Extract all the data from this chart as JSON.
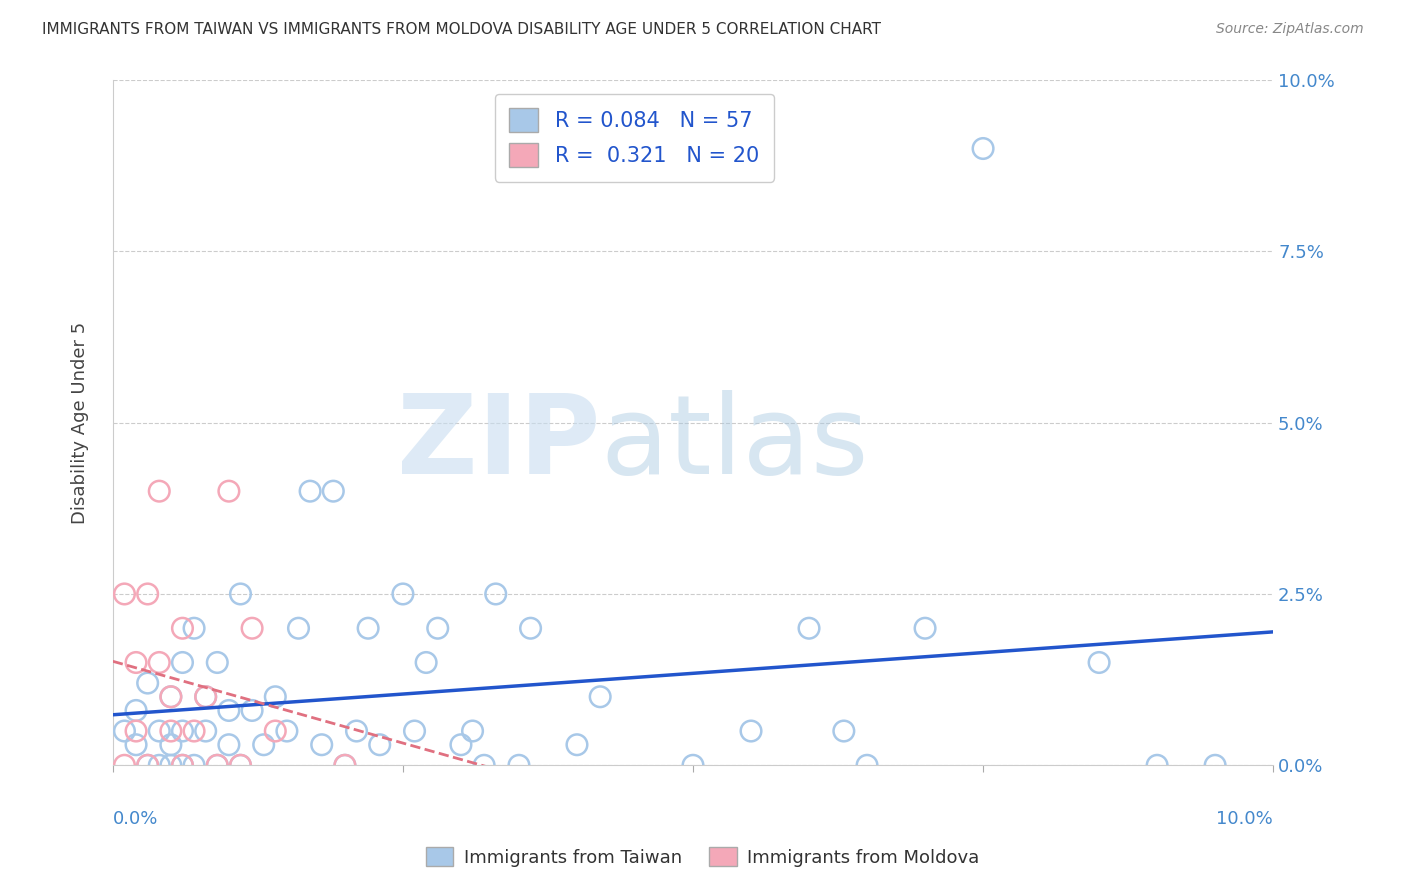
{
  "title": "IMMIGRANTS FROM TAIWAN VS IMMIGRANTS FROM MOLDOVA DISABILITY AGE UNDER 5 CORRELATION CHART",
  "source": "Source: ZipAtlas.com",
  "ylabel": "Disability Age Under 5",
  "legend_taiwan": "Immigrants from Taiwan",
  "legend_moldova": "Immigrants from Moldova",
  "taiwan_R": "0.084",
  "taiwan_N": "57",
  "moldova_R": "0.321",
  "moldova_N": "20",
  "taiwan_color": "#a8c8e8",
  "moldova_color": "#f4a8b8",
  "taiwan_line_color": "#2255cc",
  "moldova_line_color": "#e07080",
  "xlim": [
    0.0,
    0.1
  ],
  "ylim": [
    0.0,
    0.1
  ],
  "ytick_labels": [
    "0.0%",
    "2.5%",
    "5.0%",
    "7.5%",
    "10.0%"
  ],
  "ytick_values": [
    0.0,
    0.025,
    0.05,
    0.075,
    0.1
  ],
  "taiwan_x": [
    0.001,
    0.002,
    0.002,
    0.003,
    0.003,
    0.004,
    0.004,
    0.005,
    0.005,
    0.005,
    0.006,
    0.006,
    0.006,
    0.007,
    0.007,
    0.008,
    0.008,
    0.009,
    0.009,
    0.01,
    0.01,
    0.011,
    0.011,
    0.012,
    0.013,
    0.014,
    0.015,
    0.016,
    0.017,
    0.018,
    0.019,
    0.02,
    0.021,
    0.022,
    0.023,
    0.025,
    0.026,
    0.027,
    0.028,
    0.03,
    0.031,
    0.032,
    0.033,
    0.035,
    0.036,
    0.04,
    0.042,
    0.05,
    0.055,
    0.06,
    0.063,
    0.065,
    0.07,
    0.075,
    0.085,
    0.09,
    0.095
  ],
  "taiwan_y": [
    0.005,
    0.003,
    0.008,
    0.0,
    0.012,
    0.0,
    0.005,
    0.003,
    0.0,
    0.01,
    0.015,
    0.0,
    0.005,
    0.02,
    0.0,
    0.01,
    0.005,
    0.015,
    0.0,
    0.008,
    0.003,
    0.025,
    0.0,
    0.008,
    0.003,
    0.01,
    0.005,
    0.02,
    0.04,
    0.003,
    0.04,
    0.0,
    0.005,
    0.02,
    0.003,
    0.025,
    0.005,
    0.015,
    0.02,
    0.003,
    0.005,
    0.0,
    0.025,
    0.0,
    0.02,
    0.003,
    0.01,
    0.0,
    0.005,
    0.02,
    0.005,
    0.0,
    0.02,
    0.09,
    0.015,
    0.0,
    0.0
  ],
  "moldova_x": [
    0.001,
    0.001,
    0.002,
    0.002,
    0.003,
    0.003,
    0.004,
    0.004,
    0.005,
    0.005,
    0.006,
    0.006,
    0.007,
    0.008,
    0.009,
    0.01,
    0.011,
    0.012,
    0.014,
    0.02
  ],
  "moldova_y": [
    0.0,
    0.025,
    0.005,
    0.015,
    0.0,
    0.025,
    0.015,
    0.04,
    0.01,
    0.005,
    0.02,
    0.0,
    0.005,
    0.01,
    0.0,
    0.04,
    0.0,
    0.02,
    0.005,
    0.0
  ]
}
